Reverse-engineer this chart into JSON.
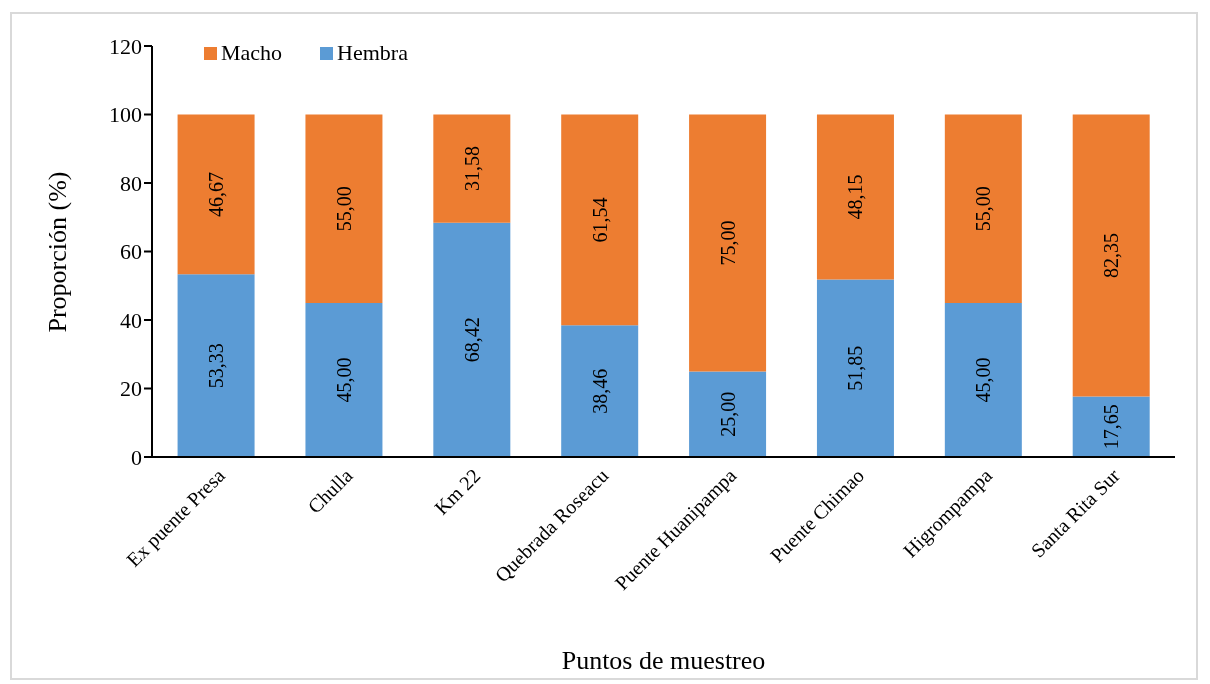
{
  "chart_data": {
    "type": "bar",
    "stacked": true,
    "xlabel": "Puntos de muestreo",
    "ylabel": "Proporción (%)",
    "categories": [
      "Ex puente Presa",
      "Chulla",
      "Km 22",
      "Quebrada Roseacu",
      "Puente Huanipampa",
      "Puente Chimao",
      "Higrompampa",
      "Santa Rita Sur"
    ],
    "series": [
      {
        "name": "Hembra",
        "color": "#5b9bd5",
        "values": [
          53.33,
          45,
          68.42,
          38.46,
          25,
          51.85,
          45,
          17.65
        ],
        "value_labels": [
          "53,33",
          "45,00",
          "68,42",
          "38,46",
          "25,00",
          "51,85",
          "45,00",
          "17,65"
        ]
      },
      {
        "name": "Macho",
        "color": "#ed7d31",
        "values": [
          46.67,
          55,
          31.58,
          61.54,
          75,
          48.15,
          55,
          82.35
        ],
        "value_labels": [
          "46,67",
          "55,00",
          "31,58",
          "61,54",
          "75,00",
          "48,15",
          "55,00",
          "82,35"
        ]
      }
    ],
    "ylim": [
      0,
      120
    ],
    "yticks": [
      0,
      20,
      40,
      60,
      80,
      100,
      120
    ],
    "grid": false,
    "legend": "top left"
  }
}
